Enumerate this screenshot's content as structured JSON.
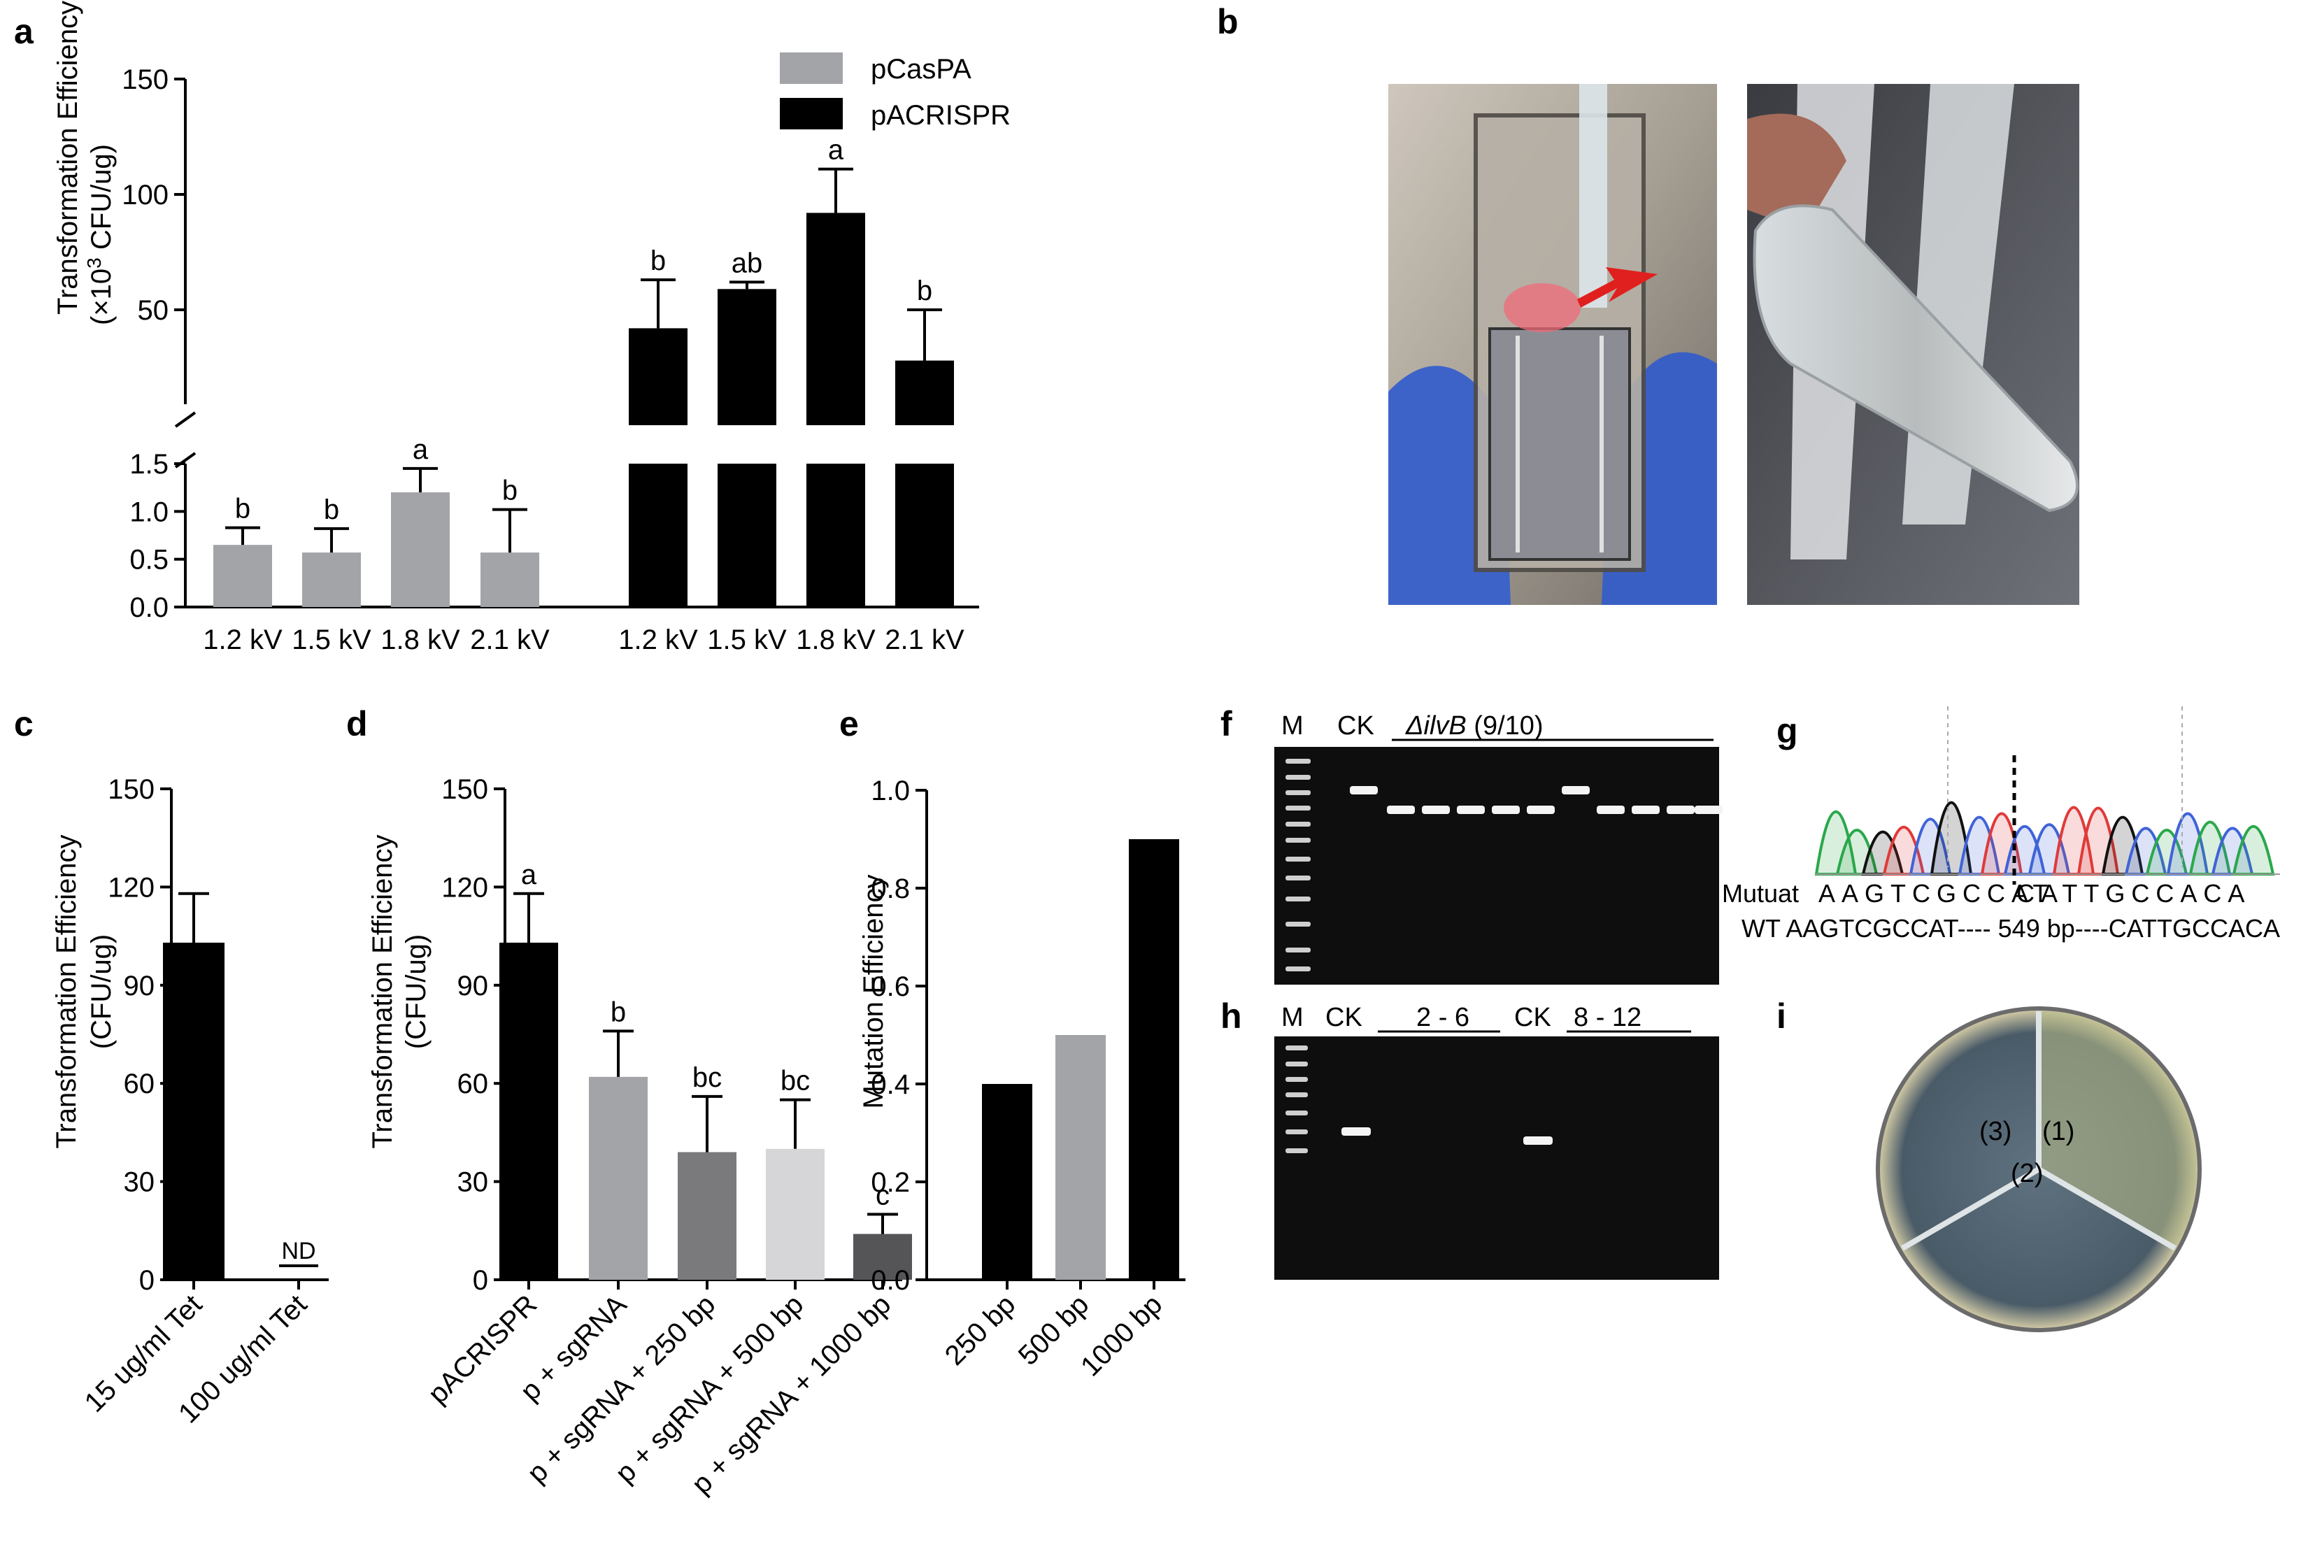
{
  "panels": {
    "a": "a",
    "b": "b",
    "c": "c",
    "d": "d",
    "e": "e",
    "f": "f",
    "g": "g",
    "h": "h",
    "i": "i"
  },
  "colors": {
    "gray": "#a3a4a8",
    "black": "#000000",
    "dark_gray": "#7a7a7c",
    "light_gray": "#d6d6d8",
    "error": "#000000",
    "gel_bg": "#0e0e0e",
    "gel_band": "#f4f4f4",
    "chrom_green": "#2aa84a",
    "chrom_black": "#111111",
    "chrom_red": "#e03a3a",
    "chrom_blue": "#3f63d8"
  },
  "chart_data": [
    {
      "panel": "a",
      "type": "bar",
      "ylabel_line1": "Transformation Efficiency",
      "ylabel_line2_prefix": "(×10",
      "ylabel_line2_sup": "3",
      "ylabel_line2_suffix": " CFU/ug)",
      "y_axis_broken": true,
      "lower_ylim": [
        0,
        1.5
      ],
      "lower_ticks": [
        "0.0",
        "0.5",
        "1.0",
        "1.5"
      ],
      "lower_tick_values": [
        0,
        0.5,
        1.0,
        1.5
      ],
      "upper_ylim": [
        0,
        150
      ],
      "upper_ticks": [
        "50",
        "100",
        "150"
      ],
      "upper_tick_values": [
        50,
        100,
        150
      ],
      "legend_position": "top-center",
      "series": [
        {
          "name": "pCasPA",
          "color": "#a3a4a8",
          "categories": [
            "1.2 kV",
            "1.5 kV",
            "1.8 kV",
            "2.1 kV"
          ],
          "values": [
            0.65,
            0.57,
            1.2,
            0.57
          ],
          "errors": [
            0.18,
            0.25,
            0.25,
            0.45
          ],
          "letters": [
            "b",
            "b",
            "a",
            "b"
          ],
          "axis": "lower"
        },
        {
          "name": "pACRISPR",
          "color": "#000000",
          "categories": [
            "1.2 kV",
            "1.5 kV",
            "1.8 kV",
            "2.1 kV"
          ],
          "values": [
            42,
            59,
            92,
            28
          ],
          "errors": [
            21,
            3,
            19,
            22
          ],
          "letters": [
            "b",
            "ab",
            "a",
            "b"
          ],
          "axis": "upper"
        }
      ]
    },
    {
      "panel": "c",
      "type": "bar",
      "ylabel_line1": "Transformation Efficiency",
      "ylabel_line2": "(CFU/ug)",
      "ylim": [
        0,
        150
      ],
      "yticks": [
        "0",
        "30",
        "60",
        "90",
        "120",
        "150"
      ],
      "ytick_values": [
        0,
        30,
        60,
        90,
        120,
        150
      ],
      "categories": [
        "15 ug/ml Tet",
        "100 ug/ml Tet"
      ],
      "values": [
        103,
        0
      ],
      "errors": [
        15,
        0
      ],
      "annotations": [
        "",
        "ND"
      ]
    },
    {
      "panel": "d",
      "type": "bar",
      "ylabel_line1": "Transformation Efficiency",
      "ylabel_line2": "(CFU/ug)",
      "ylim": [
        0,
        150
      ],
      "yticks": [
        "0",
        "30",
        "60",
        "90",
        "120",
        "150"
      ],
      "ytick_values": [
        0,
        30,
        60,
        90,
        120,
        150
      ],
      "categories": [
        "pACRISPR",
        "p + sgRNA",
        "p + sgRNA + 250 bp",
        "p + sgRNA + 500 bp",
        "p + sgRNA + 1000 bp"
      ],
      "values": [
        103,
        62,
        39,
        40,
        14
      ],
      "errors": [
        15,
        14,
        17,
        15,
        6
      ],
      "letters": [
        "a",
        "b",
        "bc",
        "bc",
        "c"
      ],
      "colors": [
        "#000000",
        "#a3a4a8",
        "#7a7a7c",
        "#d6d6d8",
        "#555557"
      ]
    },
    {
      "panel": "e",
      "type": "bar",
      "ylabel": "Mutation Efficiency",
      "ylim": [
        0,
        1.0
      ],
      "yticks": [
        "0.0",
        "0.2",
        "0.4",
        "0.6",
        "0.8",
        "1.0"
      ],
      "ytick_values": [
        0,
        0.2,
        0.4,
        0.6,
        0.8,
        1.0
      ],
      "categories": [
        "250 bp",
        "500 bp",
        "1000 bp"
      ],
      "values": [
        0.4,
        0.5,
        0.9
      ],
      "colors": [
        "#000000",
        "#a3a4a8",
        "#000000"
      ]
    }
  ],
  "gel_f": {
    "lane_m": "M",
    "lane_ck": "CK",
    "title_prefix": "Δ",
    "title_gene": "ilvB",
    "title_suffix": " (9/10)"
  },
  "gel_h": {
    "lane_m": "M",
    "lane_ck1": "CK",
    "group1": "2 - 6",
    "lane_ck2": "CK",
    "group2": "8 - 12"
  },
  "sequence_g": {
    "mutant_label": "Mutuat",
    "mutant_seq": "AAGTCGCCAT",
    "mutant_seq2": "CATTGCCACA",
    "wt_line": "WT AAGTCGCCAT---- 549 bp----CATTGCCACA"
  },
  "plate_i": {
    "sector1": "(1)",
    "sector2": "(2)",
    "sector3": "(3)"
  }
}
